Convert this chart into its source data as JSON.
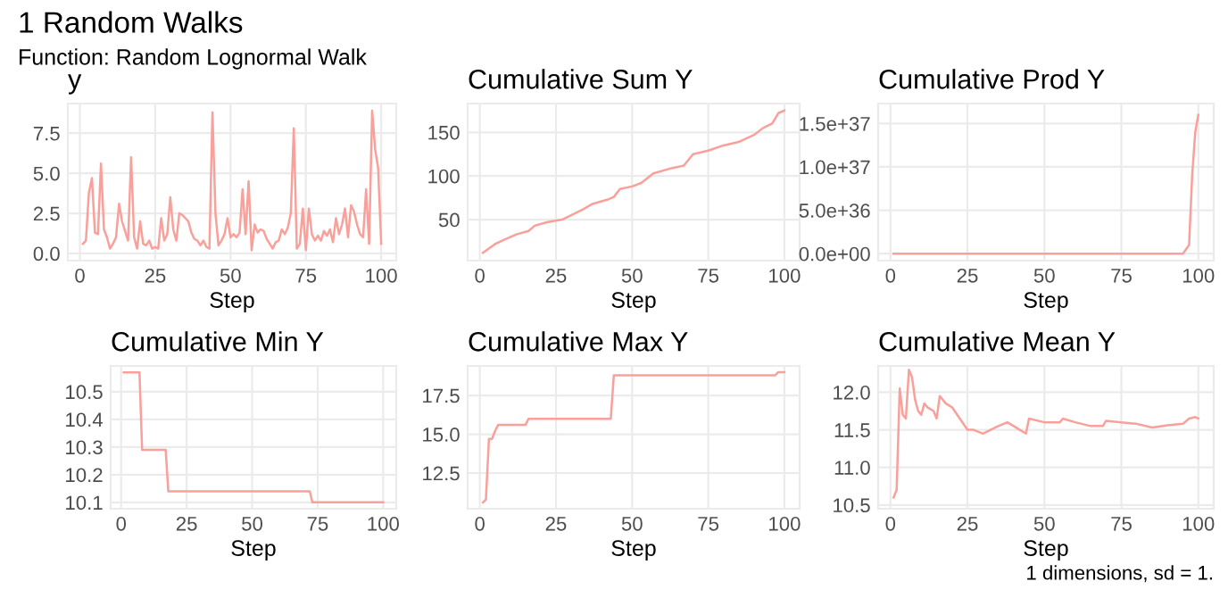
{
  "chart_data": [
    {
      "type": "other",
      "title": "1 Random Walks",
      "subtitle": "Function: Random Lognormal Walk",
      "annotations": [
        "1 dimensions, sd = 1."
      ]
    },
    {
      "type": "line",
      "title": "y",
      "xlabel": "Step",
      "grid": true,
      "xlim": [
        -4,
        105
      ],
      "xticks": [
        0,
        25,
        50,
        75,
        100
      ],
      "ylim": [
        -0.45,
        9.35
      ],
      "yticks": [
        {
          "value": 0,
          "label": "0.0"
        },
        {
          "value": 2.5,
          "label": "2.5"
        },
        {
          "value": 5,
          "label": "5.0"
        },
        {
          "value": 7.5,
          "label": "7.5"
        }
      ],
      "series": [
        {
          "color": "#f9a09a",
          "x": [
            1,
            2,
            3,
            4,
            5,
            6,
            7,
            8,
            9,
            10,
            11,
            12,
            13,
            14,
            15,
            16,
            17,
            18,
            19,
            20,
            21,
            22,
            23,
            24,
            25,
            26,
            27,
            28,
            29,
            30,
            31,
            32,
            33,
            34,
            35,
            36,
            37,
            38,
            39,
            40,
            41,
            42,
            43,
            44,
            45,
            46,
            47,
            48,
            49,
            50,
            51,
            52,
            53,
            54,
            55,
            56,
            57,
            58,
            59,
            60,
            61,
            62,
            63,
            64,
            65,
            66,
            67,
            68,
            69,
            70,
            71,
            72,
            73,
            74,
            75,
            76,
            77,
            78,
            79,
            80,
            81,
            82,
            83,
            84,
            85,
            86,
            87,
            88,
            89,
            90,
            91,
            92,
            93,
            94,
            95,
            96,
            97,
            98,
            99,
            100
          ],
          "values": [
            0.6,
            0.8,
            3.8,
            4.7,
            1.3,
            1.2,
            5.6,
            1.5,
            1.0,
            0.3,
            0.6,
            1.0,
            3.1,
            2.0,
            1.4,
            0.8,
            6.0,
            1.0,
            0.3,
            2.0,
            0.6,
            0.5,
            0.8,
            0.3,
            0.4,
            0.3,
            2.2,
            0.8,
            1.2,
            3.5,
            1.5,
            0.8,
            2.5,
            2.4,
            2.2,
            2.0,
            1.3,
            0.9,
            0.8,
            0.5,
            0.8,
            0.4,
            0.3,
            8.8,
            2.5,
            0.5,
            0.8,
            1.2,
            2.2,
            1.0,
            1.2,
            1.0,
            1.3,
            4.0,
            1.2,
            4.5,
            0.2,
            1.8,
            1.3,
            1.5,
            1.4,
            0.9,
            0.6,
            0.3,
            0.7,
            0.8,
            1.5,
            1.2,
            1.6,
            2.5,
            7.8,
            0.3,
            0.6,
            2.8,
            0.2,
            2.8,
            1.2,
            0.8,
            1.1,
            0.8,
            1.4,
            1.1,
            1.5,
            0.7,
            2.2,
            1.2,
            1.8,
            2.8,
            1.0,
            3.0,
            2.6,
            1.8,
            1.2,
            1.0,
            4.0,
            0.6,
            8.9,
            6.5,
            5.3,
            0.6
          ]
        }
      ]
    },
    {
      "type": "line",
      "title": "Cumulative Sum Y",
      "xlabel": "Step",
      "grid": true,
      "xlim": [
        -4,
        105
      ],
      "xticks": [
        0,
        25,
        50,
        75,
        100
      ],
      "ylim": [
        3,
        183
      ],
      "yticks": [
        50,
        100,
        150
      ],
      "series": [
        {
          "color": "#f9a09a",
          "x": [
            1,
            5,
            8,
            12,
            16,
            18,
            22,
            27,
            30,
            34,
            37,
            42,
            44,
            46,
            50,
            53,
            57,
            62,
            67,
            70,
            75,
            80,
            85,
            90,
            93,
            96,
            98,
            100
          ],
          "values": [
            12,
            22,
            27,
            33,
            37,
            43,
            47,
            50,
            55,
            62,
            68,
            73,
            76,
            85,
            88,
            92,
            103,
            108,
            112,
            125,
            129,
            135,
            139,
            147,
            155,
            160,
            172,
            175
          ]
        }
      ]
    },
    {
      "type": "line",
      "title": "Cumulative Prod Y",
      "xlabel": "Step",
      "grid": true,
      "xlim": [
        -4,
        105
      ],
      "xticks": [
        0,
        25,
        50,
        75,
        100
      ],
      "ylim": [
        -8e+35,
        1.73e+37
      ],
      "yticks": [
        {
          "value": 0,
          "label": "0.0e+00"
        },
        {
          "value": 5e+36,
          "label": "5.0e+36"
        },
        {
          "value": 1e+37,
          "label": "1.0e+37"
        },
        {
          "value": 1.5e+37,
          "label": "1.5e+37"
        }
      ],
      "series": [
        {
          "color": "#f9a09a",
          "x": [
            1,
            95,
            97,
            98,
            99,
            100
          ],
          "values": [
            0,
            0,
            1e+36,
            9e+36,
            1.4e+37,
            1.6e+37
          ]
        }
      ]
    },
    {
      "type": "line",
      "title": "Cumulative Min Y",
      "xlabel": "Step",
      "grid": true,
      "xlim": [
        -4,
        105
      ],
      "xticks": [
        0,
        25,
        50,
        75,
        100
      ],
      "ylim": [
        10.077,
        10.593
      ],
      "yticks": [
        10.1,
        10.2,
        10.3,
        10.4,
        10.5
      ],
      "series": [
        {
          "color": "#f9a09a",
          "x": [
            1,
            7,
            8,
            17,
            18,
            72,
            73,
            100
          ],
          "values": [
            10.57,
            10.57,
            10.29,
            10.29,
            10.14,
            10.14,
            10.1,
            10.1
          ]
        }
      ]
    },
    {
      "type": "line",
      "title": "Cumulative Max Y",
      "xlabel": "Step",
      "grid": true,
      "xlim": [
        -4,
        105
      ],
      "xticks": [
        0,
        25,
        50,
        75,
        100
      ],
      "ylim": [
        10.2,
        19.4
      ],
      "yticks": [
        12.5,
        {
          "value": 15,
          "label": "15.0"
        },
        17.5
      ],
      "series": [
        {
          "color": "#f9a09a",
          "x": [
            1,
            2,
            3,
            4,
            5,
            6,
            15,
            16,
            43,
            44,
            97,
            98,
            100
          ],
          "values": [
            10.6,
            10.8,
            14.7,
            14.7,
            15.2,
            15.6,
            15.6,
            16.0,
            16.0,
            18.8,
            18.8,
            19.0,
            19.0
          ]
        }
      ]
    },
    {
      "type": "line",
      "title": "Cumulative Mean Y",
      "xlabel": "Step",
      "grid": true,
      "xlim": [
        -4,
        105
      ],
      "xticks": [
        0,
        25,
        50,
        75,
        100
      ],
      "ylim": [
        10.45,
        12.35
      ],
      "yticks": [
        10.5,
        {
          "value": 11,
          "label": "11.0"
        },
        11.5,
        {
          "value": 12,
          "label": "12.0"
        }
      ],
      "series": [
        {
          "color": "#f9a09a",
          "x": [
            1,
            2,
            3,
            4,
            5,
            6,
            7,
            8,
            9,
            10,
            11,
            12,
            14,
            15,
            16,
            18,
            20,
            25,
            27,
            30,
            35,
            38,
            42,
            44,
            45,
            50,
            55,
            56,
            60,
            65,
            69,
            70,
            75,
            80,
            85,
            90,
            95,
            97,
            99,
            100
          ],
          "values": [
            10.6,
            10.7,
            12.05,
            11.7,
            11.65,
            12.3,
            12.2,
            11.9,
            11.75,
            11.7,
            11.85,
            11.8,
            11.75,
            11.65,
            11.95,
            11.85,
            11.8,
            11.5,
            11.5,
            11.45,
            11.55,
            11.6,
            11.5,
            11.45,
            11.65,
            11.6,
            11.6,
            11.65,
            11.6,
            11.55,
            11.55,
            11.62,
            11.6,
            11.58,
            11.53,
            11.56,
            11.58,
            11.65,
            11.67,
            11.65
          ]
        }
      ]
    }
  ]
}
